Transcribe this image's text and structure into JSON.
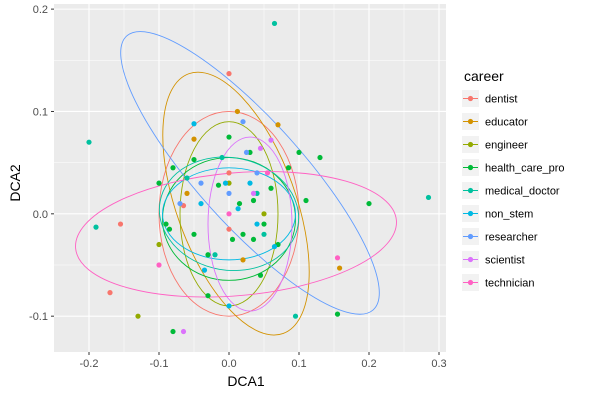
{
  "chart_data": {
    "type": "scatter",
    "xlabel": "DCA1",
    "ylabel": "DCA2",
    "xlim": [
      -0.25,
      0.31
    ],
    "ylim": [
      -0.135,
      0.205
    ],
    "x_ticks": [
      -0.2,
      -0.1,
      0.0,
      0.1,
      0.2,
      0.3
    ],
    "x_tick_labels": [
      "-0.2",
      "-0.1",
      "0.0",
      "0.1",
      "0.2",
      "0.3"
    ],
    "y_ticks": [
      -0.1,
      0.0,
      0.1,
      0.2
    ],
    "y_tick_labels": [
      "-0.1",
      "0.0",
      "0.1",
      "0.2"
    ],
    "grid": true,
    "background": "#EBEBEB",
    "legend": {
      "title": "career",
      "position": "right"
    },
    "series": [
      {
        "name": "dentist",
        "color": "#F8766D",
        "points": [
          [
            0.0,
            0.137
          ],
          [
            -0.155,
            -0.01
          ],
          [
            -0.17,
            -0.077
          ],
          [
            0.0,
            -0.015
          ],
          [
            -0.065,
            0.008
          ],
          [
            0.0,
            0.04
          ]
        ],
        "ellipse": {
          "cx": 0.0,
          "cy": 0.0,
          "rx": 0.1,
          "ry": 0.1,
          "angle": 0
        }
      },
      {
        "name": "educator",
        "color": "#D39200",
        "points": [
          [
            0.012,
            0.1
          ],
          [
            0.07,
            0.087
          ],
          [
            -0.05,
            0.073
          ],
          [
            0.158,
            -0.053
          ],
          [
            0.02,
            -0.045
          ],
          [
            -0.06,
            0.02
          ]
        ],
        "ellipse": {
          "cx": 0.01,
          "cy": 0.01,
          "rx": 0.085,
          "ry": 0.135,
          "angle": 20
        }
      },
      {
        "name": "engineer",
        "color": "#93AA00",
        "points": [
          [
            -0.13,
            -0.1
          ],
          [
            0.05,
            0.0
          ],
          [
            -0.1,
            -0.03
          ],
          [
            0.0,
            0.03
          ]
        ],
        "ellipse": {
          "cx": 0.0,
          "cy": 0.0,
          "rx": 0.07,
          "ry": 0.09,
          "angle": 0
        }
      },
      {
        "name": "health_care_pro",
        "color": "#00BA38",
        "points": [
          [
            -0.05,
            0.053
          ],
          [
            -0.09,
            -0.01
          ],
          [
            -0.1,
            0.03
          ],
          [
            0.035,
            0.013
          ],
          [
            -0.015,
            0.028
          ],
          [
            0.035,
            -0.025
          ],
          [
            0.05,
            -0.01
          ],
          [
            0.2,
            0.01
          ],
          [
            0.155,
            -0.098
          ],
          [
            0.085,
            0.045
          ],
          [
            0.1,
            0.06
          ],
          [
            -0.08,
            -0.115
          ],
          [
            0.13,
            0.055
          ],
          [
            -0.08,
            0.045
          ],
          [
            -0.03,
            -0.08
          ],
          [
            0.005,
            -0.025
          ],
          [
            0.045,
            -0.06
          ],
          [
            0.02,
            -0.02
          ],
          [
            -0.03,
            -0.04
          ],
          [
            0.0,
            0.075
          ],
          [
            0.06,
            0.025
          ],
          [
            0.11,
            0.013
          ],
          [
            -0.085,
            -0.015
          ],
          [
            0.07,
            -0.03
          ],
          [
            0.015,
            0.01
          ],
          [
            -0.05,
            -0.02
          ],
          [
            0.03,
            0.06
          ]
        ],
        "ellipse": {
          "cx": 0.0,
          "cy": -0.005,
          "rx": 0.095,
          "ry": 0.06,
          "angle": 0
        }
      },
      {
        "name": "medical_doctor",
        "color": "#00C19F",
        "points": [
          [
            -0.2,
            0.07
          ],
          [
            0.065,
            0.186
          ],
          [
            -0.19,
            -0.013
          ],
          [
            0.285,
            0.016
          ],
          [
            -0.01,
            0.055
          ],
          [
            0.05,
            -0.02
          ],
          [
            -0.02,
            -0.04
          ],
          [
            0.04,
            0.02
          ],
          [
            0.095,
            -0.1
          ],
          [
            -0.06,
            0.035
          ]
        ],
        "ellipse": {
          "cx": 0.0,
          "cy": 0.0,
          "rx": 0.1,
          "ry": 0.055,
          "angle": -10
        }
      },
      {
        "name": "non_stem",
        "color": "#00B9E3",
        "points": [
          [
            -0.05,
            0.088
          ],
          [
            0.013,
            0.005
          ],
          [
            0.065,
            -0.032
          ],
          [
            -0.035,
            -0.055
          ],
          [
            -0.005,
            0.03
          ],
          [
            0.03,
            0.03
          ],
          [
            0.04,
            -0.01
          ],
          [
            -0.04,
            0.01
          ],
          [
            0.0,
            -0.09
          ]
        ],
        "ellipse": {
          "cx": 0.0,
          "cy": 0.0,
          "rx": 0.095,
          "ry": 0.045,
          "angle": 0
        }
      },
      {
        "name": "researcher",
        "color": "#619CFF",
        "points": [
          [
            0.0,
            0.02
          ],
          [
            0.02,
            0.09
          ],
          [
            0.04,
            0.04
          ],
          [
            -0.04,
            0.03
          ],
          [
            0.025,
            0.06
          ],
          [
            -0.07,
            0.01
          ]
        ],
        "ellipse": {
          "cx": 0.03,
          "cy": 0.04,
          "rx": 0.075,
          "ry": 0.18,
          "angle": 42
        }
      },
      {
        "name": "scientist",
        "color": "#DB72FB",
        "points": [
          [
            0.06,
            0.072
          ],
          [
            -0.065,
            -0.115
          ],
          [
            0.045,
            0.064
          ],
          [
            0.035,
            0.02
          ]
        ],
        "ellipse": {
          "cx": 0.03,
          "cy": -0.01,
          "rx": 0.06,
          "ry": 0.085,
          "angle": 0
        }
      },
      {
        "name": "technician",
        "color": "#FF61C3",
        "points": [
          [
            0.155,
            -0.043
          ],
          [
            0.055,
            0.04
          ],
          [
            0.0,
            0.0
          ],
          [
            -0.1,
            -0.05
          ]
        ],
        "ellipse": {
          "cx": 0.01,
          "cy": -0.02,
          "rx": 0.23,
          "ry": 0.06,
          "angle": 5
        }
      }
    ]
  }
}
